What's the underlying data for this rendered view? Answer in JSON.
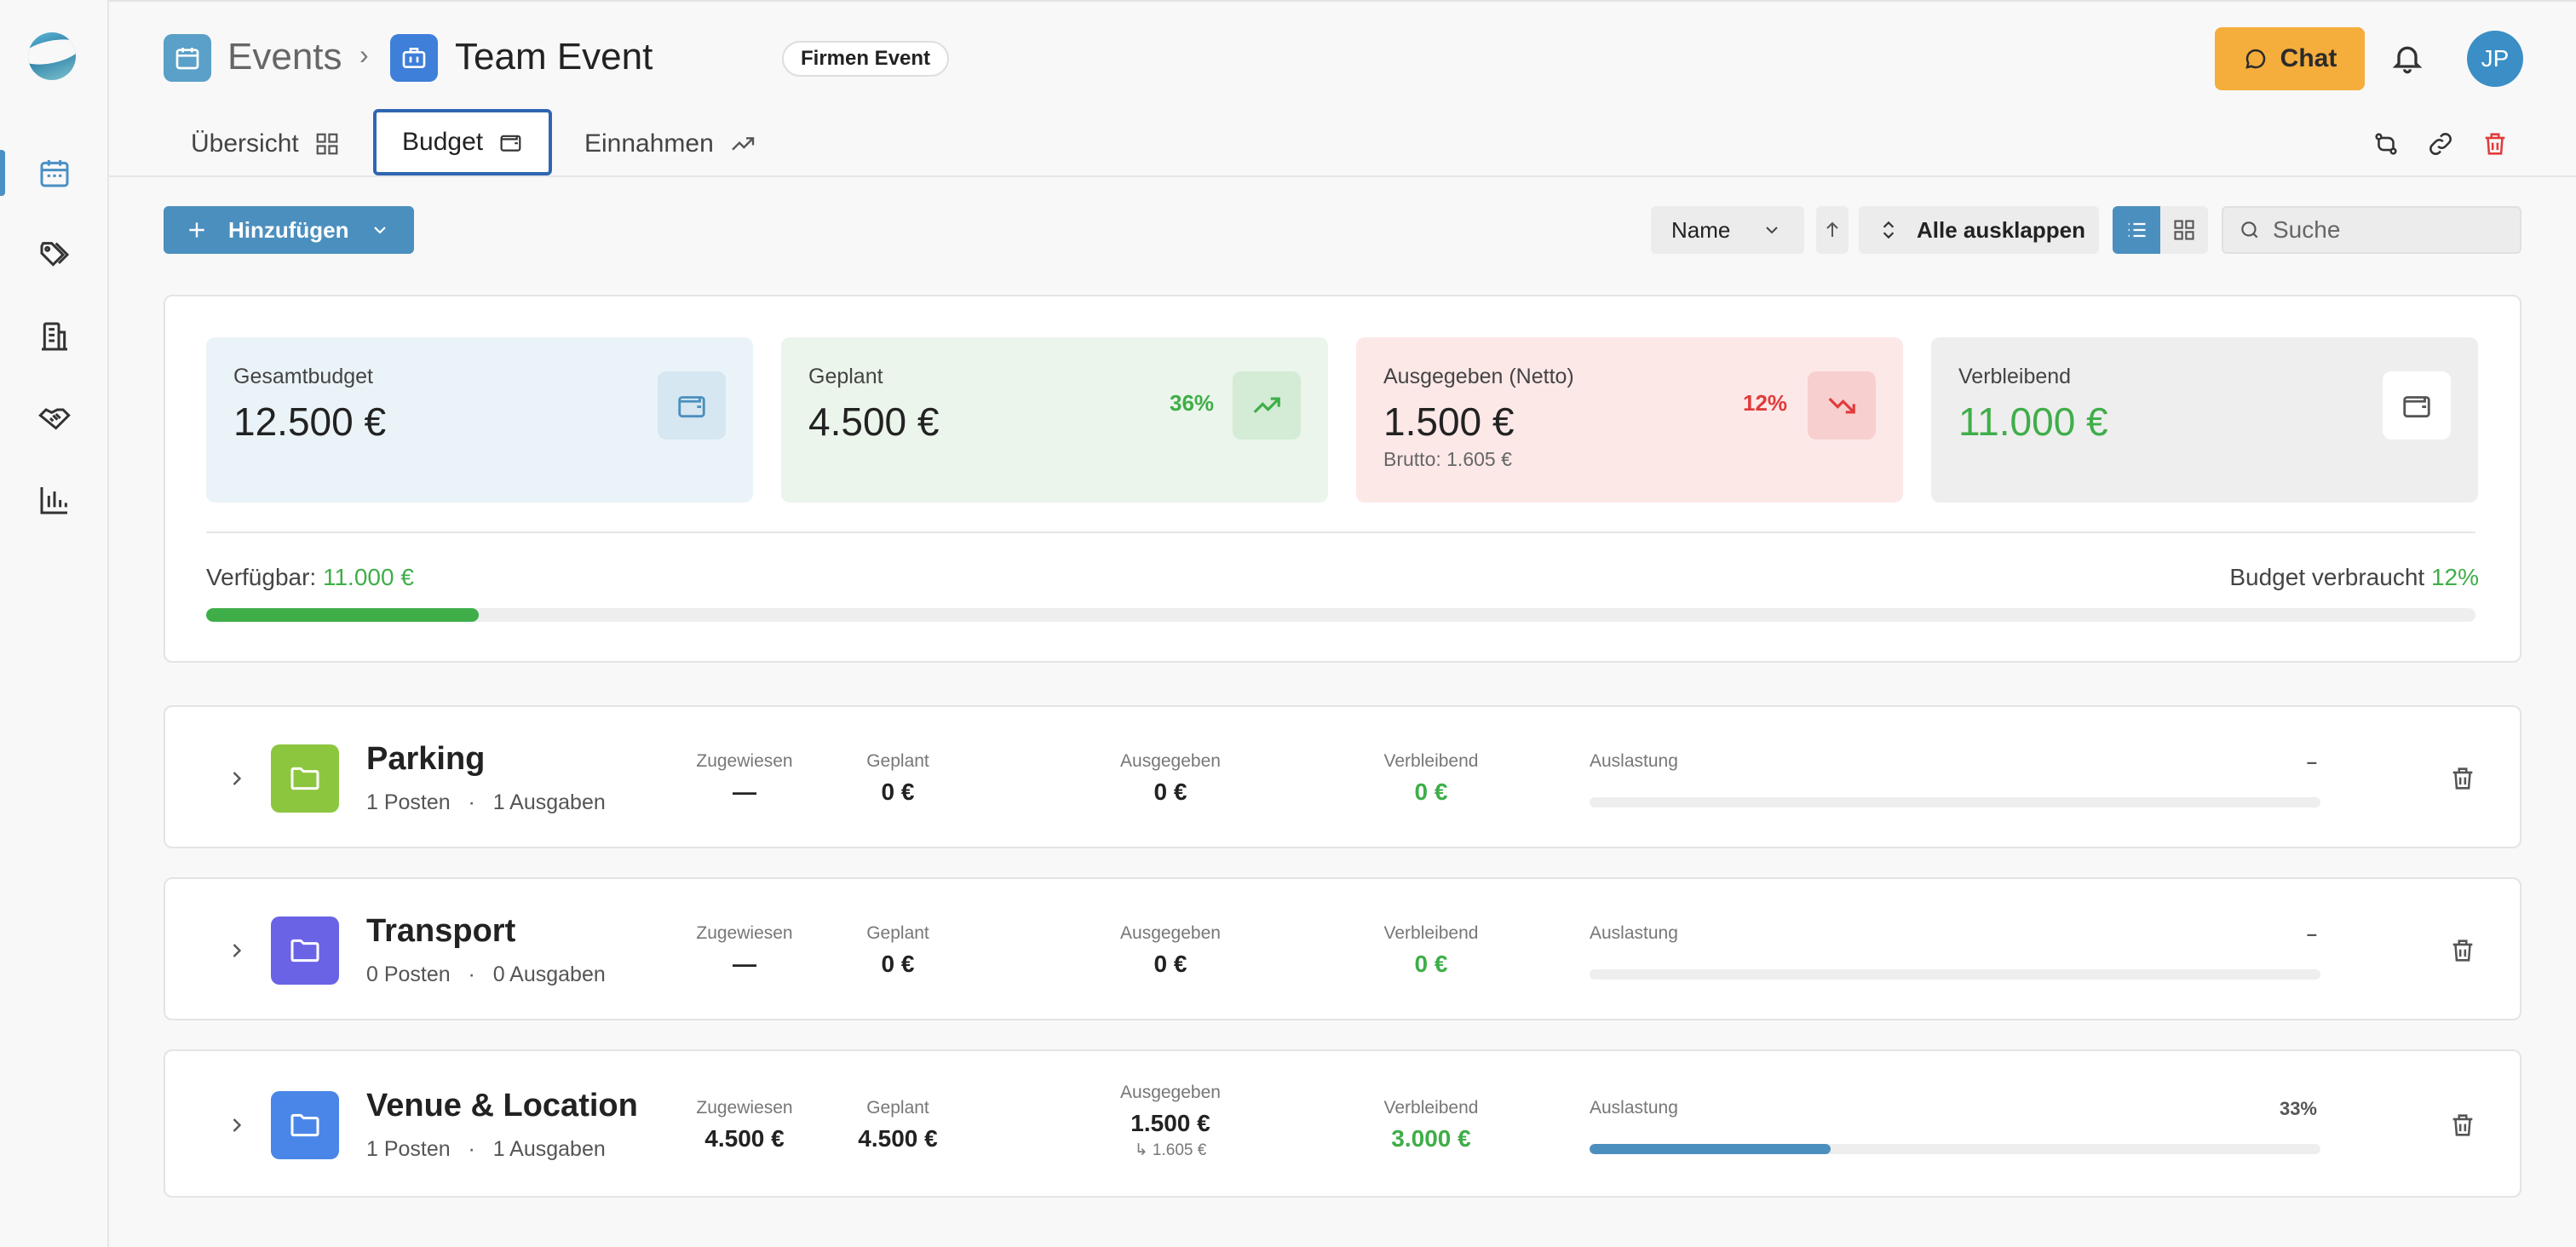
{
  "header": {
    "breadcrumb_root": "Events",
    "breadcrumb_separator": "›",
    "title": "Team Event",
    "badge": "Firmen Event",
    "chat_label": "Chat",
    "avatar_initials": "JP"
  },
  "tabs": [
    {
      "label": "Übersicht"
    },
    {
      "label": "Budget"
    },
    {
      "label": "Einnahmen"
    }
  ],
  "toolbar": {
    "add_label": "Hinzufügen",
    "sort_value": "Name",
    "expand_label": "Alle ausklappen",
    "search_placeholder": "Suche"
  },
  "summary": {
    "total": {
      "label": "Gesamtbudget",
      "value": "12.500 €"
    },
    "planned": {
      "label": "Geplant",
      "value": "4.500 €",
      "percent": "36%"
    },
    "spent": {
      "label": "Ausgegeben (Netto)",
      "value": "1.500 €",
      "percent": "12%",
      "gross": "Brutto: 1.605 €"
    },
    "remaining": {
      "label": "Verbleibend",
      "value": "11.000 €"
    },
    "available_label": "Verfügbar:",
    "available_value": "11.000 €",
    "used_label": "Budget verbraucht",
    "used_percent": "12%",
    "used_fraction": 0.12
  },
  "column_headers": {
    "assigned": "Zugewiesen",
    "planned": "Geplant",
    "spent": "Ausgegeben",
    "remaining": "Verbleibend",
    "utilization": "Auslastung"
  },
  "categories": [
    {
      "name": "Parking",
      "posts": "1 Posten",
      "expenses": "1 Ausgaben",
      "assigned": "—",
      "planned": "0 €",
      "spent": "0 €",
      "spent_gross": "",
      "remaining": "0 €",
      "utilization": "–",
      "utilization_fraction": 0,
      "color": "#8cc63f"
    },
    {
      "name": "Transport",
      "posts": "0 Posten",
      "expenses": "0 Ausgaben",
      "assigned": "—",
      "planned": "0 €",
      "spent": "0 €",
      "spent_gross": "",
      "remaining": "0 €",
      "utilization": "–",
      "utilization_fraction": 0,
      "color": "#6a63e6"
    },
    {
      "name": "Venue & Location",
      "posts": "1 Posten",
      "expenses": "1 Ausgaben",
      "assigned": "4.500 €",
      "planned": "4.500 €",
      "spent": "1.500 €",
      "spent_gross": "↳ 1.605 €",
      "remaining": "3.000 €",
      "utilization": "33%",
      "utilization_fraction": 0.33,
      "color": "#4a86e8"
    }
  ],
  "meta_separator": "·",
  "colors": {
    "accent": "#4b8fbe",
    "chat": "#f5ad3b",
    "positive": "#3fae49",
    "negative": "#e03b3b"
  }
}
